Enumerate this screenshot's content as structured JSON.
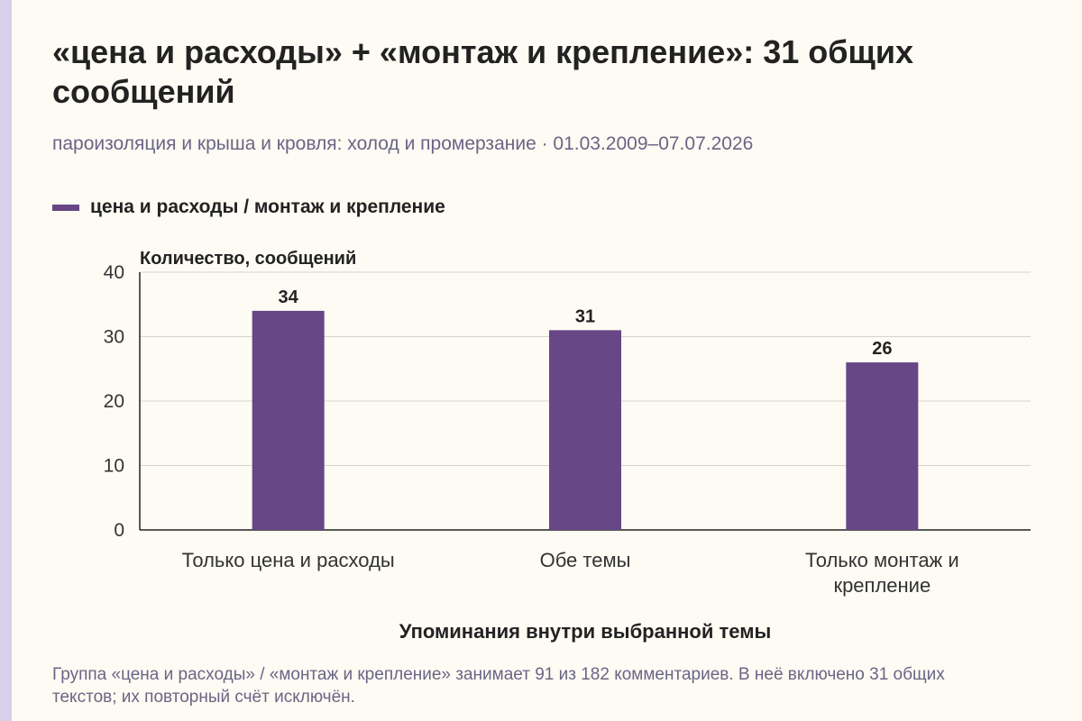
{
  "page": {
    "title": "«цена и расходы» + «монтаж и крепление»: 31 общих сообщений",
    "subtitle": "пароизоляция и крыша и кровля: холод и промерзание · 01.03.2009–07.07.2026",
    "footnote": "Группа «цена и расходы» / «монтаж и крепление» занимает 91 из 182 комментариев. В неё включено 31 общих текстов; их повторный счёт исключён.",
    "accent_color": "#d9d0ec"
  },
  "chart_data": {
    "type": "bar",
    "title": "«цена и расходы» + «монтаж и крепление»: 31 общих сообщений",
    "ylabel": "Количество, сообщений",
    "xlabel": "Упоминания внутри выбранной темы",
    "categories": [
      [
        "Только цена и расходы"
      ],
      [
        "Обе темы"
      ],
      [
        "Только монтаж и",
        "крепление"
      ]
    ],
    "series": [
      {
        "name": "цена и расходы / монтаж и крепление",
        "values": [
          34,
          31,
          26
        ],
        "color": "#674785"
      }
    ],
    "data_labels": [
      "34",
      "31",
      "26"
    ],
    "ylim": [
      0,
      40
    ],
    "yticks": [
      0,
      10,
      20,
      30,
      40
    ],
    "grid": true,
    "legend": "top-left"
  }
}
